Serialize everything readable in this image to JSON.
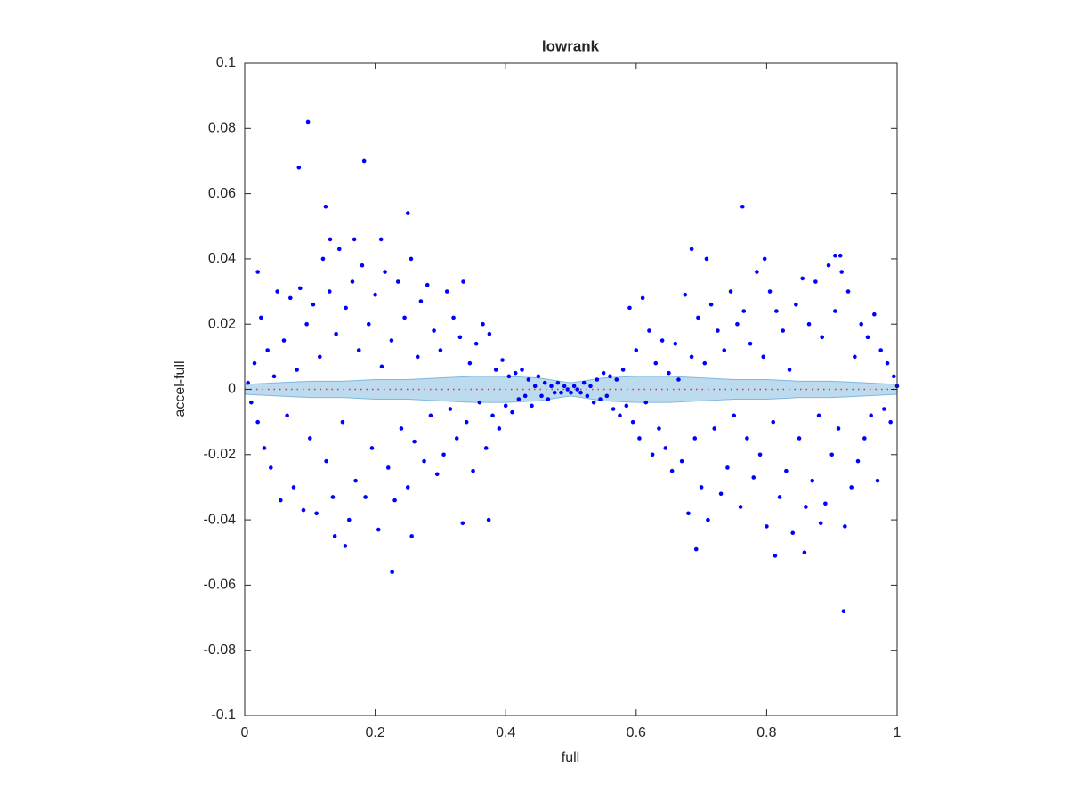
{
  "chart_data": {
    "type": "scatter",
    "title": "lowrank",
    "xlabel": "full",
    "ylabel": "accel-full",
    "xlim": [
      0,
      1
    ],
    "ylim": [
      -0.1,
      0.1
    ],
    "xticks": [
      0,
      0.2,
      0.4,
      0.6,
      0.8,
      1
    ],
    "yticks": [
      -0.1,
      -0.08,
      -0.06,
      -0.04,
      -0.02,
      0,
      0.02,
      0.04,
      0.06,
      0.08,
      0.1
    ],
    "grid": false,
    "series": [
      {
        "color": "#0000ff",
        "x": [
          0.005,
          0.01,
          0.015,
          0.02,
          0.025,
          0.03,
          0.035,
          0.04,
          0.045,
          0.05,
          0.055,
          0.06,
          0.065,
          0.07,
          0.075,
          0.08,
          0.085,
          0.09,
          0.095,
          0.1,
          0.105,
          0.11,
          0.115,
          0.12,
          0.125,
          0.13,
          0.135,
          0.14,
          0.145,
          0.15,
          0.155,
          0.16,
          0.165,
          0.17,
          0.175,
          0.18,
          0.185,
          0.19,
          0.195,
          0.2,
          0.205,
          0.21,
          0.215,
          0.22,
          0.225,
          0.23,
          0.235,
          0.24,
          0.245,
          0.25,
          0.255,
          0.26,
          0.265,
          0.27,
          0.275,
          0.28,
          0.285,
          0.29,
          0.295,
          0.3,
          0.305,
          0.31,
          0.315,
          0.32,
          0.325,
          0.33,
          0.335,
          0.34,
          0.345,
          0.35,
          0.355,
          0.36,
          0.365,
          0.37,
          0.375,
          0.38,
          0.385,
          0.39,
          0.395,
          0.4,
          0.405,
          0.41,
          0.415,
          0.42,
          0.425,
          0.43,
          0.435,
          0.44,
          0.445,
          0.45,
          0.455,
          0.46,
          0.465,
          0.47,
          0.475,
          0.48,
          0.485,
          0.49,
          0.495,
          0.5,
          0.505,
          0.51,
          0.515,
          0.52,
          0.525,
          0.53,
          0.535,
          0.54,
          0.545,
          0.55,
          0.555,
          0.56,
          0.565,
          0.57,
          0.575,
          0.58,
          0.585,
          0.59,
          0.595,
          0.6,
          0.605,
          0.61,
          0.615,
          0.62,
          0.625,
          0.63,
          0.635,
          0.64,
          0.645,
          0.65,
          0.655,
          0.66,
          0.665,
          0.67,
          0.675,
          0.68,
          0.685,
          0.69,
          0.695,
          0.7,
          0.705,
          0.71,
          0.715,
          0.72,
          0.725,
          0.73,
          0.735,
          0.74,
          0.745,
          0.75,
          0.755,
          0.76,
          0.765,
          0.77,
          0.775,
          0.78,
          0.785,
          0.79,
          0.795,
          0.8,
          0.805,
          0.81,
          0.815,
          0.82,
          0.825,
          0.83,
          0.835,
          0.84,
          0.845,
          0.85,
          0.855,
          0.86,
          0.865,
          0.87,
          0.875,
          0.88,
          0.885,
          0.89,
          0.895,
          0.9,
          0.905,
          0.91,
          0.915,
          0.92,
          0.925,
          0.93,
          0.935,
          0.94,
          0.945,
          0.95,
          0.955,
          0.96,
          0.965,
          0.97,
          0.975,
          0.98,
          0.985,
          0.99,
          0.995,
          1.0,
          0.097,
          0.083,
          0.183,
          0.124,
          0.25,
          0.763,
          0.226,
          0.918,
          0.154,
          0.138,
          0.334,
          0.374,
          0.256,
          0.692,
          0.813,
          0.858,
          0.685,
          0.708,
          0.797,
          0.905,
          0.913,
          0.02,
          0.131,
          0.168,
          0.209,
          0.883
        ],
        "values": [
          0.002,
          -0.004,
          0.008,
          -0.01,
          0.022,
          -0.018,
          0.012,
          -0.024,
          0.004,
          0.03,
          -0.034,
          0.015,
          -0.008,
          0.028,
          -0.03,
          0.006,
          0.031,
          -0.037,
          0.02,
          -0.015,
          0.026,
          -0.038,
          0.01,
          0.04,
          -0.022,
          0.03,
          -0.033,
          0.017,
          0.043,
          -0.01,
          0.025,
          -0.04,
          0.033,
          -0.028,
          0.012,
          0.038,
          -0.033,
          0.02,
          -0.018,
          0.029,
          -0.043,
          0.007,
          0.036,
          -0.024,
          0.015,
          -0.034,
          0.033,
          -0.012,
          0.022,
          -0.03,
          0.04,
          -0.016,
          0.01,
          0.027,
          -0.022,
          0.032,
          -0.008,
          0.018,
          -0.026,
          0.012,
          -0.02,
          0.03,
          -0.006,
          0.022,
          -0.015,
          0.016,
          0.033,
          -0.01,
          0.008,
          -0.025,
          0.014,
          -0.004,
          0.02,
          -0.018,
          0.017,
          -0.008,
          0.006,
          -0.012,
          0.009,
          -0.005,
          0.004,
          -0.007,
          0.005,
          -0.003,
          0.006,
          -0.002,
          0.003,
          -0.005,
          0.001,
          0.004,
          -0.002,
          0.002,
          -0.003,
          0.001,
          -0.001,
          0.002,
          -0.001,
          0.001,
          0,
          -0.001,
          0.001,
          0,
          -0.001,
          0.002,
          -0.002,
          0.001,
          -0.004,
          0.003,
          -0.003,
          0.005,
          -0.002,
          0.004,
          -0.006,
          0.003,
          -0.008,
          0.006,
          -0.005,
          0.025,
          -0.01,
          0.012,
          -0.015,
          0.028,
          -0.004,
          0.018,
          -0.02,
          0.008,
          -0.012,
          0.015,
          -0.018,
          0.005,
          -0.025,
          0.014,
          0.003,
          -0.022,
          0.029,
          -0.038,
          0.01,
          -0.015,
          0.022,
          -0.03,
          0.008,
          -0.04,
          0.026,
          -0.012,
          0.018,
          -0.032,
          0.012,
          -0.024,
          0.03,
          -0.008,
          0.02,
          -0.036,
          0.024,
          -0.015,
          0.014,
          -0.027,
          0.036,
          -0.02,
          0.01,
          -0.042,
          0.03,
          -0.01,
          0.024,
          -0.033,
          0.018,
          -0.025,
          0.006,
          -0.044,
          0.026,
          -0.015,
          0.034,
          -0.036,
          0.02,
          -0.028,
          0.033,
          -0.008,
          0.016,
          -0.035,
          0.038,
          -0.02,
          0.024,
          -0.012,
          0.036,
          -0.042,
          0.03,
          -0.03,
          0.01,
          -0.022,
          0.02,
          -0.015,
          0.016,
          -0.008,
          0.023,
          -0.028,
          0.012,
          -0.006,
          0.008,
          -0.01,
          0.004,
          0.001,
          0.082,
          0.068,
          0.07,
          0.056,
          0.054,
          0.056,
          -0.056,
          -0.068,
          -0.048,
          -0.045,
          -0.041,
          -0.04,
          -0.045,
          -0.049,
          -0.051,
          -0.05,
          0.043,
          0.04,
          0.04,
          0.041,
          0.041,
          0.036,
          0.046,
          0.046,
          0.046,
          -0.041
        ]
      }
    ],
    "band": {
      "color": "#a6cfe8",
      "x": [
        0,
        0.05,
        0.1,
        0.15,
        0.2,
        0.25,
        0.3,
        0.35,
        0.4,
        0.45,
        0.5,
        0.55,
        0.6,
        0.65,
        0.7,
        0.75,
        0.8,
        0.85,
        0.9,
        0.95,
        1
      ],
      "upper": [
        0.0015,
        0.002,
        0.0025,
        0.0025,
        0.003,
        0.003,
        0.0035,
        0.004,
        0.004,
        0.0035,
        0.002,
        0.0035,
        0.004,
        0.004,
        0.0035,
        0.003,
        0.003,
        0.0025,
        0.0025,
        0.002,
        0.0015
      ],
      "lower": [
        -0.0015,
        -0.002,
        -0.0025,
        -0.0025,
        -0.003,
        -0.003,
        -0.0035,
        -0.004,
        -0.004,
        -0.0035,
        -0.002,
        -0.0035,
        -0.004,
        -0.004,
        -0.0035,
        -0.003,
        -0.003,
        -0.0025,
        -0.0025,
        -0.002,
        -0.0015
      ]
    },
    "reference_line": {
      "value": 0,
      "color": "#e0303a"
    }
  }
}
